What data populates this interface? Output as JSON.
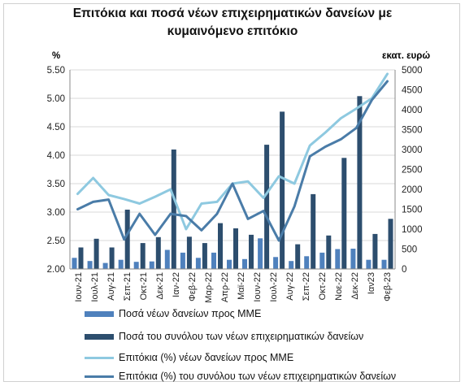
{
  "title": {
    "line1": "Επιτόκια και ποσά νέων επιχειρηματικών δανείων με",
    "line2": "κυμαινόμενο επιτόκιο"
  },
  "chart_data": {
    "type": "bar",
    "title": "Επιτόκια και ποσά νέων επιχειρηματικών δανείων με κυμαινόμενο επιτόκιο",
    "y_left_unit": "%",
    "y_right_unit": "εκατ. ευρώ",
    "y_left_range": [
      2.0,
      5.5
    ],
    "y_left_ticks": [
      "2.00",
      "2.50",
      "3.00",
      "3.50",
      "4.00",
      "4.50",
      "5.00",
      "5.50"
    ],
    "y_right_range": [
      0,
      5000
    ],
    "y_right_ticks": [
      "0",
      "500",
      "1000",
      "1500",
      "2000",
      "2500",
      "3000",
      "3500",
      "4000",
      "4500",
      "5000"
    ],
    "grid": true,
    "legend_position": "bottom",
    "categories": [
      "Ιουν-21",
      "Ιουλ-21",
      "Αυγ-21",
      "Σεπ-21",
      "Οκτ-21",
      "Νοε-21",
      "Δεκ-21",
      "Ιαν-22",
      "Φεβ-22",
      "Μαρ-22",
      "Απρ-22",
      "Μαϊ-22",
      "Ιουν-22",
      "Ιουλ-22",
      "Αυγ-22",
      "Σεπ-22",
      "Οκτ-22",
      "Νοε-22",
      "Δεκ-22",
      "Ιαν-23",
      "Φεβ-23"
    ],
    "tick_labels": [
      "Ιουν-21",
      "Ιουλ-21",
      "Αυγ-21",
      "Σεπ-21",
      "Οκτ-21",
      "Δεκ-21",
      "Ιαν-22",
      "Φεβ-22",
      "Μαρ-22",
      "Απρ-22",
      "Μαϊ-22",
      "Ιουν-22",
      "Ιουλ-22",
      "Αυγ-22",
      "Σεπ-22",
      "Οκτ-22",
      "Νοε-22",
      "Δεκ-22",
      "Ιαν23",
      "Φεβ-23"
    ],
    "series": [
      {
        "name": "Ποσά νέων δανείων προς ΜΜΕ",
        "type": "bar",
        "axis": "right",
        "color": "#4f81bd",
        "values": [
          280,
          200,
          150,
          230,
          180,
          190,
          480,
          410,
          280,
          410,
          230,
          250,
          770,
          300,
          200,
          320,
          410,
          500,
          510,
          230,
          230
        ]
      },
      {
        "name": "Ποσά του συνόλου των νέων επιχειρηματικών δανείων",
        "type": "bar",
        "axis": "right",
        "color": "#2d4e6e",
        "values": [
          540,
          760,
          540,
          1490,
          650,
          800,
          3000,
          810,
          650,
          1150,
          1020,
          860,
          3120,
          3950,
          620,
          1880,
          840,
          2790,
          4340,
          880,
          1260
        ]
      },
      {
        "name": "Επιτόκια (%) νέων δανείων προς ΜΜΕ",
        "type": "line",
        "axis": "left",
        "color": "#8ec9e0",
        "values": [
          3.32,
          3.6,
          3.3,
          3.23,
          3.15,
          3.27,
          3.4,
          2.7,
          3.15,
          3.18,
          3.5,
          3.54,
          3.25,
          3.63,
          3.5,
          4.17,
          4.4,
          4.65,
          4.82,
          5.0,
          5.43
        ]
      },
      {
        "name": "Επιτόκια (%) του συνόλου των νέων επιχειρηματικών δανείων",
        "type": "line",
        "axis": "left",
        "color": "#4a7ca8",
        "values": [
          3.05,
          3.18,
          3.22,
          2.52,
          2.97,
          2.6,
          2.97,
          2.93,
          2.68,
          2.97,
          3.5,
          2.88,
          3.02,
          2.5,
          3.1,
          3.98,
          4.15,
          4.28,
          4.48,
          4.97,
          5.3
        ]
      }
    ]
  },
  "legend": [
    {
      "label": "Ποσά νέων δανείων προς ΜΜΕ"
    },
    {
      "label": "Ποσά του συνόλου των νέων επιχειρηματικών δανείων"
    },
    {
      "label": "Επιτόκια (%) νέων δανείων προς ΜΜΕ"
    },
    {
      "label": "Επιτόκια (%) του συνόλου των νέων επιχειρηματικών δανείων"
    }
  ]
}
